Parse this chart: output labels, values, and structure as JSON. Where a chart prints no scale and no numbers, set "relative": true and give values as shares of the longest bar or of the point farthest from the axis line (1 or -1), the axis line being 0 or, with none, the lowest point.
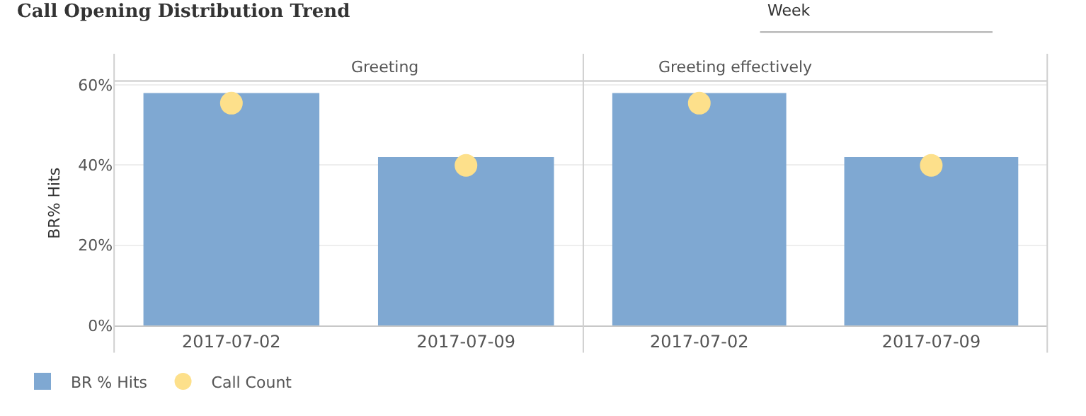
{
  "chart_data": [
    {
      "type": "bar",
      "title": "Call Opening Distribution Trend",
      "subtitle": "Greeting",
      "ylabel": "BR% Hits",
      "annotations": [
        "Week"
      ],
      "categories": [
        "2017-07-02",
        "2017-07-09"
      ],
      "series": [
        {
          "name": "BR % Hits",
          "color": "#7fa8d2",
          "values": [
            0.58,
            0.42
          ]
        }
      ],
      "ylim": [
        0,
        0.61
      ],
      "yticks": [
        {
          "value": 0,
          "label": "0%"
        },
        {
          "value": 0.2,
          "label": "20%"
        },
        {
          "value": 0.4,
          "label": "40%"
        },
        {
          "value": 0.6,
          "label": "60%"
        }
      ],
      "grid": "y",
      "legend": "bottom"
    },
    {
      "type": "bar",
      "subtitle": "Greeting effectively",
      "categories": [
        "2017-07-02",
        "2017-07-09"
      ],
      "series": [
        {
          "color": "#7fa8d2",
          "values": [
            0.58,
            0.42
          ]
        }
      ],
      "ylim": [
        0,
        0.61
      ],
      "yticks": [
        0,
        0.2,
        0.4,
        0.6
      ],
      "grid": "y",
      "tick_labels": "x"
    },
    {
      "type": "scatter",
      "relative": true,
      "categories": [
        null,
        null
      ],
      "marker": "circle",
      "legend": "bottom",
      "series": [
        {
          "name": "Call Count",
          "color": "#fde08b",
          "values": [
            1,
            0.72
          ]
        }
      ]
    },
    {
      "type": "scatter",
      "relative": true,
      "categories": [
        null,
        null
      ],
      "marker": "circle",
      "series": [
        {
          "color": "#fde08b",
          "values": [
            1,
            0.72
          ]
        }
      ]
    }
  ]
}
